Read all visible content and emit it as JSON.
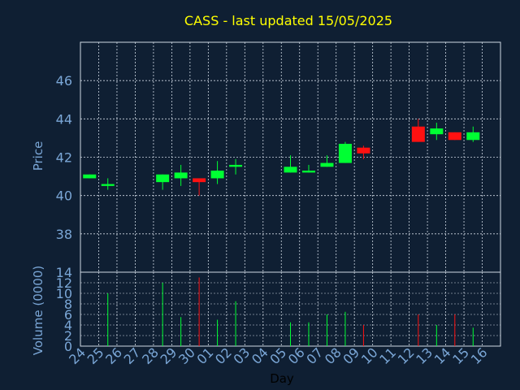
{
  "chart_data": [
    {
      "type": "candlestick",
      "title": "CASS - last updated 15/05/2025",
      "ylabel": "Price",
      "ylim": [
        36,
        48
      ],
      "yticks": [
        38,
        40,
        42,
        44,
        46
      ],
      "grid": true,
      "x": [
        "24",
        "25",
        "26",
        "27",
        "28",
        "29",
        "30",
        "01",
        "02",
        "03",
        "04",
        "05",
        "06",
        "07",
        "08",
        "09",
        "10",
        "11",
        "12",
        "13",
        "14",
        "15",
        "16"
      ],
      "candles": [
        {
          "day": "24",
          "open": 40.9,
          "close": 41.1,
          "high": 41.1,
          "low": 40.9,
          "color": "up"
        },
        {
          "day": "25",
          "open": 40.5,
          "close": 40.6,
          "high": 40.9,
          "low": 40.3,
          "color": "up"
        },
        {
          "day": "28",
          "open": 40.7,
          "close": 41.1,
          "high": 41.1,
          "low": 40.3,
          "color": "up"
        },
        {
          "day": "29",
          "open": 40.9,
          "close": 41.2,
          "high": 41.6,
          "low": 40.5,
          "color": "up"
        },
        {
          "day": "30",
          "open": 40.9,
          "close": 40.7,
          "high": 40.9,
          "low": 40.0,
          "color": "down"
        },
        {
          "day": "01",
          "open": 40.9,
          "close": 41.3,
          "high": 41.8,
          "low": 40.6,
          "color": "up"
        },
        {
          "day": "02",
          "open": 41.5,
          "close": 41.6,
          "high": 41.9,
          "low": 41.1,
          "color": "up"
        },
        {
          "day": "05",
          "open": 41.2,
          "close": 41.5,
          "high": 42.1,
          "low": 41.2,
          "color": "up"
        },
        {
          "day": "06",
          "open": 41.2,
          "close": 41.3,
          "high": 41.6,
          "low": 41.2,
          "color": "up"
        },
        {
          "day": "07",
          "open": 41.5,
          "close": 41.7,
          "high": 42.1,
          "low": 41.5,
          "color": "up"
        },
        {
          "day": "08",
          "open": 41.7,
          "close": 42.7,
          "high": 42.8,
          "low": 41.7,
          "color": "up"
        },
        {
          "day": "09",
          "open": 42.5,
          "close": 42.2,
          "high": 42.6,
          "low": 41.9,
          "color": "down"
        },
        {
          "day": "12",
          "open": 43.6,
          "close": 42.8,
          "high": 44.0,
          "low": 42.8,
          "color": "down"
        },
        {
          "day": "13",
          "open": 43.2,
          "close": 43.5,
          "high": 43.8,
          "low": 42.9,
          "color": "up"
        },
        {
          "day": "14",
          "open": 43.3,
          "close": 42.9,
          "high": 43.3,
          "low": 42.9,
          "color": "down"
        },
        {
          "day": "15",
          "open": 42.9,
          "close": 43.3,
          "high": 43.6,
          "low": 42.8,
          "color": "up"
        }
      ],
      "colors": {
        "up": "#00ff33",
        "down": "#ff1111"
      }
    },
    {
      "type": "bar",
      "xlabel": "Day",
      "ylabel": "Volume (0000)",
      "ylim": [
        0,
        14
      ],
      "yticks": [
        0,
        2,
        4,
        6,
        8,
        10,
        12,
        14
      ],
      "categories": [
        "24",
        "25",
        "26",
        "27",
        "28",
        "29",
        "30",
        "01",
        "02",
        "03",
        "04",
        "05",
        "06",
        "07",
        "08",
        "09",
        "10",
        "11",
        "12",
        "13",
        "14",
        "15",
        "16"
      ],
      "bars": [
        {
          "day": "25",
          "value": 10,
          "color": "up"
        },
        {
          "day": "28",
          "value": 12,
          "color": "up"
        },
        {
          "day": "29",
          "value": 5.5,
          "color": "up"
        },
        {
          "day": "30",
          "value": 13,
          "color": "down"
        },
        {
          "day": "01",
          "value": 5,
          "color": "up"
        },
        {
          "day": "02",
          "value": 8.5,
          "color": "up"
        },
        {
          "day": "05",
          "value": 4.5,
          "color": "up"
        },
        {
          "day": "06",
          "value": 4.5,
          "color": "up"
        },
        {
          "day": "07",
          "value": 6,
          "color": "up"
        },
        {
          "day": "08",
          "value": 6.5,
          "color": "up"
        },
        {
          "day": "09",
          "value": 4,
          "color": "down"
        },
        {
          "day": "12",
          "value": 6,
          "color": "down"
        },
        {
          "day": "13",
          "value": 4,
          "color": "up"
        },
        {
          "day": "14",
          "value": 6,
          "color": "down"
        },
        {
          "day": "15",
          "value": 3.5,
          "color": "up"
        }
      ]
    }
  ],
  "style": {
    "background": "#0f1f33",
    "title_color": "#ffff00",
    "axis_text_color": "#7aa6d6",
    "grid_color": "#cfd8e3",
    "frame_color": "#cfd8e3"
  }
}
